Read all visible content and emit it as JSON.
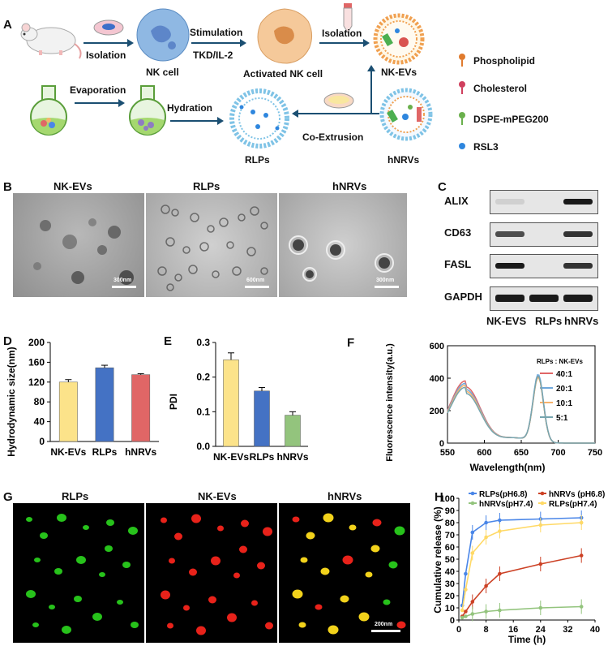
{
  "panels": {
    "A": "A",
    "B": "B",
    "C": "C",
    "D": "D",
    "E": "E",
    "F": "F",
    "G": "G",
    "H": "H"
  },
  "schematic": {
    "isolation_1": "Isolation",
    "nk_cell": "NK cell",
    "stimulation": "Stimulation",
    "tkd": "TKD/IL-2",
    "activated": "Activated NK cell",
    "isolation_2": "Isolation",
    "nk_evs": "NK-EVs",
    "evaporation": "Evaporation",
    "hydration": "Hydration",
    "rlps": "RLPs",
    "co_extrusion": "Co-Extrusion",
    "hnrvs": "hNRVs",
    "legend": [
      {
        "label": "Phospholipid",
        "color": "#e07b2e"
      },
      {
        "label": "Cholesterol",
        "color": "#d0405e"
      },
      {
        "label": "DSPE-mPEG200",
        "color": "#6ab04c"
      },
      {
        "label": "RSL3",
        "color": "#2e86de"
      }
    ]
  },
  "tem": {
    "titles": [
      "NK-EVs",
      "RLPs",
      "hNRVs"
    ],
    "scales": [
      "300nm",
      "600nm",
      "300nm"
    ]
  },
  "western": {
    "rows": [
      "ALIX",
      "CD63",
      "FASL",
      "GAPDH"
    ],
    "columns": [
      "NK-EVS",
      "RLPs",
      "hNRVs"
    ]
  },
  "fluor_titles": [
    "RLPs",
    "NK-EVs",
    "hNRVs"
  ],
  "fluor_scale": "200nm",
  "chart_data": [
    {
      "panel": "D",
      "type": "bar",
      "categories": [
        "NK-EVs",
        "RLPs",
        "hNRVs"
      ],
      "values": [
        120,
        149,
        135
      ],
      "errors": [
        5,
        5,
        2
      ],
      "colors": [
        "#fce38a",
        "#4472c4",
        "#e06666"
      ],
      "ylabel": "Hydrodynamic size(nm)",
      "ylim": [
        0,
        200
      ],
      "yticks": [
        0,
        40,
        80,
        120,
        160,
        200
      ]
    },
    {
      "panel": "E",
      "type": "bar",
      "categories": [
        "NK-EVs",
        "RLPs",
        "hNRVs"
      ],
      "values": [
        0.25,
        0.16,
        0.09
      ],
      "errors": [
        0.02,
        0.01,
        0.01
      ],
      "colors": [
        "#fce38a",
        "#4472c4",
        "#93c47d"
      ],
      "ylabel": "PDI",
      "ylim": [
        0,
        0.3
      ],
      "yticks": [
        "0.0",
        "0.1",
        "0.2",
        "0.3"
      ]
    },
    {
      "panel": "F",
      "type": "line",
      "xlabel": "Wavelength(nm)",
      "ylabel": "Fluorescence intensity(a.u.)",
      "xlim": [
        550,
        750
      ],
      "ylim": [
        0,
        600
      ],
      "xticks": [
        550,
        600,
        650,
        700,
        750
      ],
      "yticks": [
        0,
        200,
        400,
        600
      ],
      "legend_title": "RLPs : NK-EVs",
      "series": [
        {
          "name": "40:1",
          "color": "#e06666",
          "peak1": 345,
          "peak2": 400
        },
        {
          "name": "20:1",
          "color": "#6fa8dc",
          "peak1": 330,
          "peak2": 415
        },
        {
          "name": "10:1",
          "color": "#f6b26b",
          "peak1": 318,
          "peak2": 395
        },
        {
          "name": "5:1",
          "color": "#76a5af",
          "peak1": 305,
          "peak2": 405
        }
      ]
    },
    {
      "panel": "H",
      "type": "line",
      "xlabel": "Time (h)",
      "ylabel": "Cumulative release (%)",
      "xlim": [
        0,
        40
      ],
      "ylim": [
        0,
        100
      ],
      "xticks": [
        0,
        8,
        16,
        24,
        32,
        40
      ],
      "yticks": [
        0,
        10,
        20,
        30,
        40,
        50,
        60,
        70,
        80,
        90,
        100
      ],
      "x": [
        1,
        2,
        4,
        8,
        12,
        24,
        36
      ],
      "series": [
        {
          "name": "RLPs(pH6.8)",
          "color": "#4a86e8",
          "values": [
            12,
            38,
            72,
            80,
            82,
            83,
            84
          ]
        },
        {
          "name": "hNRVs (pH6.8)",
          "color": "#cc4125",
          "values": [
            3,
            7,
            15,
            28,
            38,
            46,
            53
          ]
        },
        {
          "name": "hNRVs(pH7.4)",
          "color": "#93c47d",
          "values": [
            2,
            3,
            5,
            7,
            8,
            10,
            11
          ]
        },
        {
          "name": "RLPs(pH7.4)",
          "color": "#ffd966",
          "values": [
            8,
            25,
            55,
            68,
            73,
            78,
            80
          ]
        }
      ]
    }
  ]
}
